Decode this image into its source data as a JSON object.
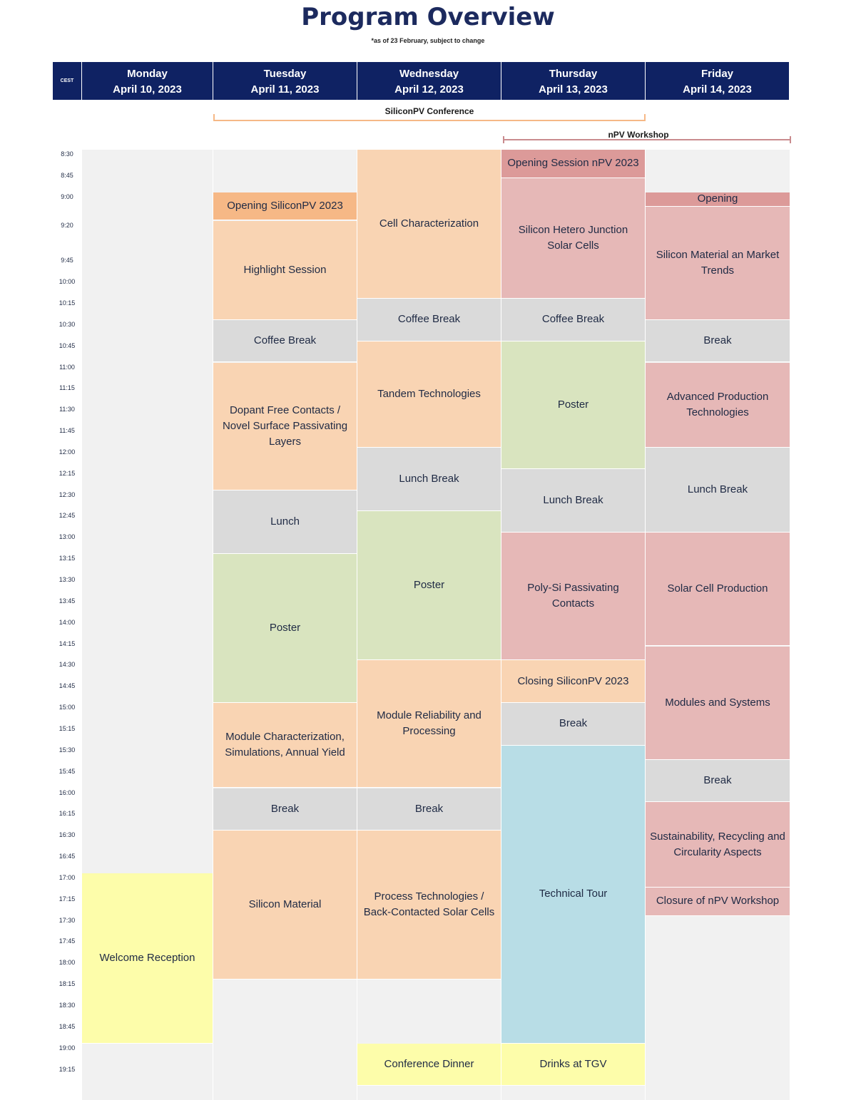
{
  "title": "Program Overview",
  "subtitle": "*as of 23 February, subject to change",
  "header": {
    "timezone": "CEST",
    "days": [
      {
        "name": "Monday",
        "date": "April 10, 2023"
      },
      {
        "name": "Tuesday",
        "date": "April 11, 2023"
      },
      {
        "name": "Wednesday",
        "date": "April 12, 2023"
      },
      {
        "name": "Thursday",
        "date": "April 13, 2023"
      },
      {
        "name": "Friday",
        "date": "April 14, 2023"
      }
    ]
  },
  "spans": {
    "siliconpv": "SiliconPV Conference",
    "npv": "nPV Workshop"
  },
  "colors": {
    "header": "#0f2263",
    "siliconpv_bar": "#f6b886",
    "npv_bar": "#c98b8e",
    "session": "#f9d4b3",
    "opening_siliconpv": "#f6b886",
    "break": "#dadada",
    "poster": "#d9e4bf",
    "npv_session": "#e6b8b7",
    "npv_opening": "#dc9a99",
    "social": "#fdfdaa",
    "tour": "#b8dde6"
  },
  "times": [
    "8:30",
    "8:45",
    "9:00",
    "9:20",
    "9:45",
    "10:00",
    "10:15",
    "10:30",
    "10:45",
    "11:00",
    "11:15",
    "11:30",
    "11:45",
    "12:00",
    "12:15",
    "12:30",
    "12:45",
    "13:00",
    "13:15",
    "13:30",
    "13:45",
    "14:00",
    "14:15",
    "14:30",
    "14:45",
    "15:00",
    "15:15",
    "15:30",
    "15:45",
    "16:00",
    "16:15",
    "16:30",
    "16:45",
    "17:00",
    "17:15",
    "17:30",
    "17:45",
    "18:00",
    "18:15",
    "18:30",
    "18:45",
    "19:00",
    "19:15"
  ],
  "schedule": {
    "monday": [
      {
        "label": "Welcome Reception",
        "start": "17:00",
        "end": "19:00",
        "kind": "social"
      }
    ],
    "tuesday": [
      {
        "label": "Opening SiliconPV 2023",
        "start": "9:00",
        "end": "9:20",
        "kind": "opening_siliconpv"
      },
      {
        "label": "Highlight Session",
        "start": "9:20",
        "end": "10:30",
        "kind": "session"
      },
      {
        "label": "Coffee Break",
        "start": "10:30",
        "end": "11:00",
        "kind": "break"
      },
      {
        "label": "Dopant Free Contacts / Novel Surface Passivating Layers",
        "start": "11:00",
        "end": "12:30",
        "kind": "session"
      },
      {
        "label": "Lunch",
        "start": "12:30",
        "end": "13:15",
        "kind": "break"
      },
      {
        "label": "Poster",
        "start": "13:15",
        "end": "15:00",
        "kind": "poster"
      },
      {
        "label": "Module Characterization, Simulations, Annual Yield",
        "start": "15:00",
        "end": "16:00",
        "kind": "session"
      },
      {
        "label": "Break",
        "start": "16:00",
        "end": "16:30",
        "kind": "break"
      },
      {
        "label": "Silicon Material",
        "start": "16:30",
        "end": "18:15",
        "kind": "session"
      }
    ],
    "wednesday": [
      {
        "label": "Cell Characterization",
        "start": "8:30",
        "end": "10:15",
        "kind": "session"
      },
      {
        "label": "Coffee Break",
        "start": "10:15",
        "end": "10:45",
        "kind": "break"
      },
      {
        "label": "Tandem Technologies",
        "start": "10:45",
        "end": "12:00",
        "kind": "session"
      },
      {
        "label": "Lunch Break",
        "start": "12:00",
        "end": "12:45",
        "kind": "break"
      },
      {
        "label": "Poster",
        "start": "12:45",
        "end": "14:30",
        "kind": "poster"
      },
      {
        "label": "Module Reliability and Processing",
        "start": "14:30",
        "end": "16:00",
        "kind": "session"
      },
      {
        "label": "Break",
        "start": "16:00",
        "end": "16:30",
        "kind": "break"
      },
      {
        "label": "Process Technologies / Back-Contacted Solar Cells",
        "start": "16:30",
        "end": "18:15",
        "kind": "session"
      },
      {
        "label": "Conference Dinner",
        "start": "19:00",
        "end": "19:30",
        "kind": "social"
      }
    ],
    "thursday": [
      {
        "label": "Opening Session nPV 2023",
        "start": "8:30",
        "end": "8:50",
        "kind": "npv_opening"
      },
      {
        "label": "Silicon Hetero Junction Solar Cells",
        "start": "8:50",
        "end": "10:15",
        "kind": "npv_session"
      },
      {
        "label": "Coffee Break",
        "start": "10:15",
        "end": "10:45",
        "kind": "break"
      },
      {
        "label": "Poster",
        "start": "10:45",
        "end": "12:15",
        "kind": "poster"
      },
      {
        "label": "Lunch Break",
        "start": "12:15",
        "end": "13:00",
        "kind": "break"
      },
      {
        "label": "Poly-Si Passivating Contacts",
        "start": "13:00",
        "end": "14:30",
        "kind": "npv_session"
      },
      {
        "label": "Closing SiliconPV 2023",
        "start": "14:30",
        "end": "15:00",
        "kind": "session"
      },
      {
        "label": "Break",
        "start": "15:00",
        "end": "15:30",
        "kind": "break"
      },
      {
        "label": "Technical Tour",
        "start": "15:30",
        "end": "19:00",
        "kind": "tour"
      },
      {
        "label": "Drinks at TGV",
        "start": "19:00",
        "end": "19:30",
        "kind": "social"
      }
    ],
    "friday": [
      {
        "label": "Opening",
        "start": "9:00",
        "end": "9:10",
        "kind": "npv_opening"
      },
      {
        "label": "Silicon Material an Market Trends",
        "start": "9:10",
        "end": "10:30",
        "kind": "npv_session"
      },
      {
        "label": "Break",
        "start": "10:30",
        "end": "11:00",
        "kind": "break"
      },
      {
        "label": "Advanced Production Technologies",
        "start": "11:00",
        "end": "12:00",
        "kind": "npv_session"
      },
      {
        "label": "Lunch Break",
        "start": "12:00",
        "end": "13:00",
        "kind": "break"
      },
      {
        "label": "Solar Cell Production",
        "start": "13:00",
        "end": "14:20",
        "kind": "npv_session"
      },
      {
        "label": "Modules and Systems",
        "start": "14:20",
        "end": "15:40",
        "kind": "npv_session"
      },
      {
        "label": "Break",
        "start": "15:40",
        "end": "16:10",
        "kind": "break"
      },
      {
        "label": "Sustainability, Recycling and Circularity Aspects",
        "start": "16:10",
        "end": "17:10",
        "kind": "npv_session"
      },
      {
        "label": "Closure of nPV Workshop",
        "start": "17:10",
        "end": "17:30",
        "kind": "npv_session"
      }
    ]
  }
}
